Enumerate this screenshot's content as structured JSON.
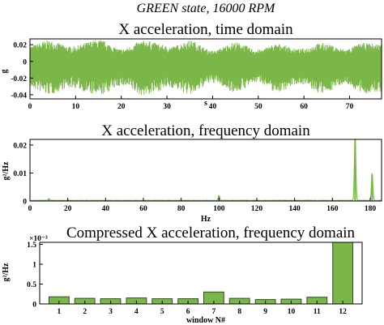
{
  "figure": {
    "suptitle": "GREEN state, 16000 RPM"
  },
  "colors": {
    "signal": "#7ab648",
    "bar_fill": "#7ab648",
    "bar_edge": "#2f4f1f",
    "axis": "#000000"
  },
  "chart_data": [
    {
      "type": "line",
      "title": "X acceleration, time domain",
      "xlabel": "s",
      "ylabel": "g",
      "xlim": [
        0,
        77
      ],
      "ylim": [
        -0.045,
        0.027
      ],
      "xticks": [
        "0",
        "10",
        "20",
        "30",
        "40",
        "50",
        "60",
        "70"
      ],
      "yticks": [
        "0.02",
        "0",
        "-0.02",
        "-0.04"
      ],
      "envelope": {
        "x": [
          0,
          4,
          9,
          15,
          20,
          25,
          31,
          35,
          40,
          45,
          50,
          54,
          59,
          64,
          69,
          73,
          77
        ],
        "upper": [
          0.019,
          0.025,
          0.018,
          0.026,
          0.015,
          0.025,
          0.018,
          0.025,
          0.013,
          0.023,
          0.014,
          0.021,
          0.015,
          0.022,
          0.015,
          0.022,
          0.021
        ],
        "lower": [
          -0.033,
          -0.04,
          -0.032,
          -0.041,
          -0.03,
          -0.041,
          -0.032,
          -0.04,
          -0.026,
          -0.037,
          -0.025,
          -0.037,
          -0.027,
          -0.039,
          -0.027,
          -0.039,
          -0.037
        ]
      }
    },
    {
      "type": "line",
      "title": "X acceleration, frequency domain",
      "xlabel": "Hz",
      "ylabel": "g²/Hz",
      "xlim": [
        0,
        186
      ],
      "ylim": [
        0,
        0.022
      ],
      "xticks": [
        "0",
        "20",
        "40",
        "60",
        "80",
        "100",
        "120",
        "140",
        "160",
        "180"
      ],
      "yticks": [
        "0.02",
        "0.01",
        "0"
      ],
      "baseline": 0.0002,
      "peaks": [
        {
          "x": 10,
          "y": 0.0006
        },
        {
          "x": 100,
          "y": 0.0018
        },
        {
          "x": 172,
          "y": 0.022
        },
        {
          "x": 181,
          "y": 0.0095
        }
      ]
    },
    {
      "type": "bar",
      "title": "Compressed X acceleration, frequency domain",
      "xlabel": "window N#",
      "ylabel": "g²/Hz",
      "scale_note": "×10⁻³",
      "categories": [
        "1",
        "2",
        "3",
        "4",
        "5",
        "6",
        "7",
        "8",
        "9",
        "10",
        "11",
        "12"
      ],
      "values": [
        0.18,
        0.14,
        0.13,
        0.15,
        0.13,
        0.13,
        0.3,
        0.14,
        0.11,
        0.12,
        0.17,
        1.55
      ],
      "ylim": [
        0,
        1.55
      ],
      "yticks": [
        "1.5",
        "1",
        "0.5",
        "0"
      ]
    }
  ]
}
